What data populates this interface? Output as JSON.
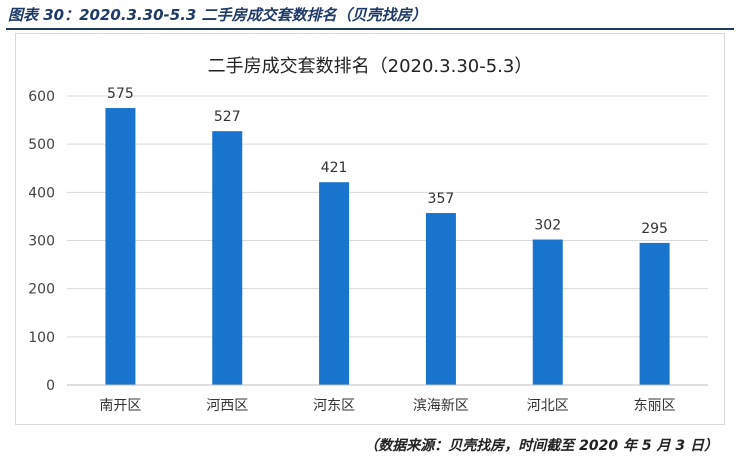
{
  "figure_caption": "图表 30：2020.3.30-5.3 二手房成交套数排名（贝壳找房）",
  "source_note": "（数据来源：贝壳找房，时间截至 2020 年 5 月 3 日）",
  "chart_data": {
    "type": "bar",
    "title": "二手房成交套数排名（2020.3.30-5.3）",
    "categories": [
      "南开区",
      "河西区",
      "河东区",
      "滨海新区",
      "河北区",
      "东丽区"
    ],
    "values": [
      575,
      527,
      421,
      357,
      302,
      295
    ],
    "ylim": [
      0,
      600
    ],
    "yticks": [
      0,
      100,
      200,
      300,
      400,
      500,
      600
    ],
    "grid": true,
    "bar_color": "#1874cd",
    "xlabel": "",
    "ylabel": ""
  }
}
